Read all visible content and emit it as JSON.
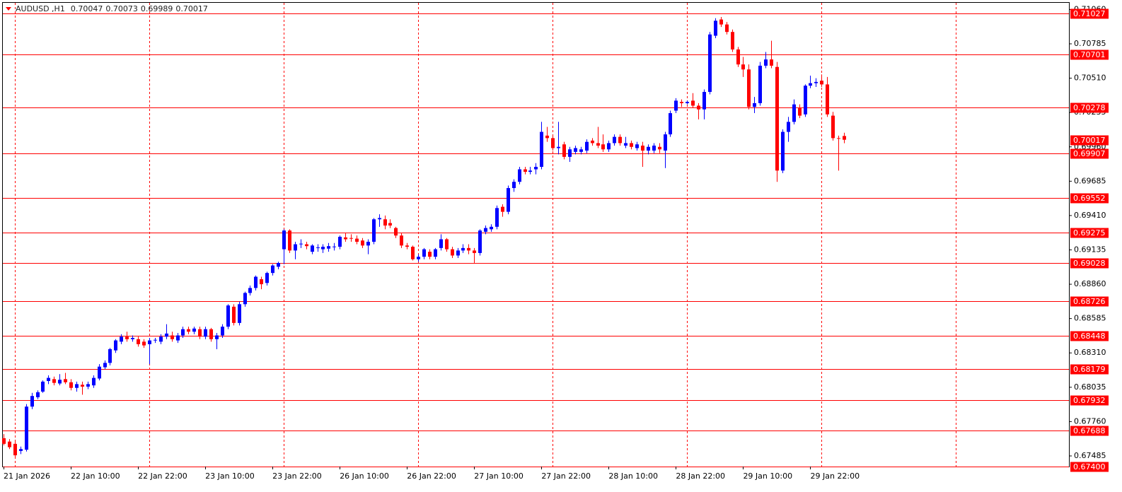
{
  "chart_data": {
    "type": "candlestick",
    "symbol": "AUDUSD ,H1",
    "bull_color": "#0000ff",
    "bear_color": "#ff0000",
    "level_color": "#ff0000",
    "grid": true,
    "ylim": [
      0.674,
      0.71136
    ],
    "yticks": [
      {
        "value": 0.7106,
        "label": "0.71060"
      },
      {
        "value": 0.70785,
        "label": "0.70785"
      },
      {
        "value": 0.7051,
        "label": "0.70510"
      },
      {
        "value": 0.70235,
        "label": "0.70235"
      },
      {
        "value": 0.6996,
        "label": "0.69960"
      },
      {
        "value": 0.69685,
        "label": "0.69685"
      },
      {
        "value": 0.6941,
        "label": "0.69410"
      },
      {
        "value": 0.69135,
        "label": "0.69135"
      },
      {
        "value": 0.6886,
        "label": "0.68860"
      },
      {
        "value": 0.68585,
        "label": "0.68585"
      },
      {
        "value": 0.6831,
        "label": "0.68310"
      },
      {
        "value": 0.68035,
        "label": "0.68035"
      },
      {
        "value": 0.6776,
        "label": "0.67760"
      },
      {
        "value": 0.67485,
        "label": "0.67485"
      }
    ],
    "levels": [
      {
        "value": 0.71027,
        "label": "0.71027"
      },
      {
        "value": 0.70701,
        "label": "0.70701"
      },
      {
        "value": 0.70278,
        "label": "0.70278"
      },
      {
        "value": 0.69907,
        "label": "0.69907"
      },
      {
        "value": 0.69552,
        "label": "0.69552"
      },
      {
        "value": 0.69275,
        "label": "0.69275"
      },
      {
        "value": 0.69028,
        "label": "0.69028"
      },
      {
        "value": 0.68726,
        "label": "0.68726"
      },
      {
        "value": 0.68448,
        "label": "0.68448"
      },
      {
        "value": 0.68179,
        "label": "0.68179"
      },
      {
        "value": 0.67932,
        "label": "0.67932"
      },
      {
        "value": 0.67688,
        "label": "0.67688"
      },
      {
        "value": 0.674,
        "label": "0.67400"
      }
    ],
    "categories": [
      "21 Jan 2026",
      null,
      null,
      null,
      null,
      null,
      null,
      null,
      null,
      null,
      null,
      null,
      "22 Jan 10:00",
      null,
      null,
      null,
      null,
      null,
      null,
      null,
      null,
      null,
      null,
      null,
      "22 Jan 22:00",
      null,
      null,
      null,
      null,
      null,
      null,
      null,
      null,
      null,
      null,
      null,
      "23 Jan 10:00",
      null,
      null,
      null,
      null,
      null,
      null,
      null,
      null,
      null,
      null,
      null,
      "23 Jan 22:00",
      null,
      null,
      null,
      null,
      null,
      null,
      null,
      null,
      null,
      null,
      null,
      "26 Jan 10:00",
      null,
      null,
      null,
      null,
      null,
      null,
      null,
      null,
      null,
      null,
      null,
      "26 Jan 22:00",
      null,
      null,
      null,
      null,
      null,
      null,
      null,
      null,
      null,
      null,
      null,
      "27 Jan 10:00",
      null,
      null,
      null,
      null,
      null,
      null,
      null,
      null,
      null,
      null,
      null,
      "27 Jan 22:00",
      null,
      null,
      null,
      null,
      null,
      null,
      null,
      null,
      null,
      null,
      null,
      "28 Jan 10:00",
      null,
      null,
      null,
      null,
      null,
      null,
      null,
      null,
      null,
      null,
      null,
      "28 Jan 22:00",
      null,
      null,
      null,
      null,
      null,
      null,
      null,
      null,
      null,
      null,
      null,
      "29 Jan 10:00",
      null,
      null,
      null,
      null,
      null,
      null,
      null,
      null,
      null,
      null,
      null,
      "29 Jan 22:00",
      null,
      null,
      null,
      null,
      null,
      null
    ],
    "open": [
      0.67627,
      0.676,
      0.67582,
      0.67525,
      0.67535,
      0.6788,
      0.67955,
      0.68,
      0.68085,
      0.681,
      0.68065,
      0.681,
      0.68075,
      0.6803,
      0.68055,
      0.6804,
      0.6805,
      0.68105,
      0.68195,
      0.6823,
      0.6833,
      0.684,
      0.6844,
      0.6842,
      0.6842,
      0.684,
      0.6838,
      0.6841,
      0.684,
      0.6844,
      0.6845,
      0.6841,
      0.6845,
      0.685,
      0.6848,
      0.685,
      0.6844,
      0.685,
      0.6842,
      0.6845,
      0.6852,
      0.6868,
      0.6855,
      0.687,
      0.6879,
      0.6883,
      0.689,
      0.6887,
      0.6895,
      0.69,
      0.6914,
      0.6929,
      0.6913,
      0.6918,
      0.6918,
      0.6912,
      0.6915,
      0.6914,
      0.69145,
      0.6916,
      0.6916,
      0.69235,
      0.6923,
      0.69225,
      0.6921,
      0.6917,
      0.692,
      0.6938,
      0.6938,
      0.6935,
      0.6931,
      0.6925,
      0.6917,
      0.6916,
      0.6906,
      0.6908,
      0.6912,
      0.6908,
      0.6915,
      0.6922,
      0.6914,
      0.6909,
      0.6913,
      0.6915,
      0.6913,
      0.6911,
      0.6928,
      0.693,
      0.6932,
      0.6948,
      0.6944,
      0.6963,
      0.6968,
      0.6978,
      0.6976,
      0.6978,
      0.698,
      0.7005,
      0.7003,
      0.6995,
      0.6998,
      0.6988,
      0.6992,
      0.6992,
      0.6993,
      0.7001,
      0.6999,
      0.6998,
      0.6994,
      0.6999,
      0.7004,
      0.6997,
      0.6999,
      0.6995,
      0.6997,
      0.6993,
      0.6993,
      0.6996,
      0.6993,
      0.7006,
      0.7025,
      0.7032,
      0.7031,
      0.7033,
      0.7029,
      0.7026,
      0.704,
      0.7085,
      0.7098,
      0.7094,
      0.7088,
      0.7074,
      0.7062,
      0.7058,
      0.7028,
      0.7031,
      0.7061,
      0.7066,
      0.706,
      0.6977,
      0.7008,
      0.7016,
      0.7027,
      0.7022,
      0.7045,
      0.7047,
      0.7049,
      0.7046,
      0.7021,
      0.7003,
      0.70047
    ],
    "high": [
      0.6766,
      0.6762,
      0.676,
      0.6756,
      0.679,
      0.6799,
      0.6801,
      0.6809,
      0.6813,
      0.6812,
      0.6814,
      0.6815,
      0.681,
      0.6808,
      0.6808,
      0.6808,
      0.6813,
      0.6822,
      0.6825,
      0.6835,
      0.6842,
      0.6846,
      0.6848,
      0.6845,
      0.6844,
      0.6842,
      0.6843,
      0.6843,
      0.6846,
      0.6854,
      0.6848,
      0.6847,
      0.6852,
      0.6852,
      0.6852,
      0.6852,
      0.6852,
      0.6851,
      0.6847,
      0.6854,
      0.687,
      0.687,
      0.6872,
      0.688,
      0.6885,
      0.6893,
      0.6892,
      0.6896,
      0.6902,
      0.6904,
      0.693,
      0.693,
      0.692,
      0.6922,
      0.692,
      0.6918,
      0.6918,
      0.6918,
      0.6919,
      0.6919,
      0.6925,
      0.6927,
      0.6926,
      0.6925,
      0.6923,
      0.6922,
      0.6939,
      0.6942,
      0.6941,
      0.6938,
      0.6932,
      0.6927,
      0.6919,
      0.6917,
      0.691,
      0.6915,
      0.6914,
      0.6915,
      0.6926,
      0.6923,
      0.6916,
      0.6915,
      0.6918,
      0.6918,
      0.6915,
      0.693,
      0.6933,
      0.6934,
      0.6949,
      0.695,
      0.6965,
      0.697,
      0.698,
      0.698,
      0.698,
      0.6983,
      0.7016,
      0.7012,
      0.7005,
      0.7016,
      0.7,
      0.6996,
      0.6997,
      0.6996,
      0.7002,
      0.7003,
      0.7012,
      0.7006,
      0.7001,
      0.7006,
      0.7006,
      0.7004,
      0.7001,
      0.7,
      0.7,
      0.6998,
      0.6999,
      0.6999,
      0.7008,
      0.7025,
      0.7035,
      0.7034,
      0.7033,
      0.7039,
      0.7031,
      0.7042,
      0.7088,
      0.7099,
      0.71,
      0.7096,
      0.709,
      0.7076,
      0.7068,
      0.7062,
      0.7036,
      0.7064,
      0.7072,
      0.7081,
      0.7064,
      0.701,
      0.702,
      0.7034,
      0.703,
      0.7046,
      0.7053,
      0.7051,
      0.7054,
      0.7052,
      0.7024,
      0.7005,
      0.70073
    ],
    "low": [
      0.6757,
      0.6754,
      0.67475,
      0.675,
      0.6752,
      0.6786,
      0.6794,
      0.6799,
      0.6806,
      0.6805,
      0.6805,
      0.6806,
      0.6801,
      0.68,
      0.67975,
      0.6802,
      0.6803,
      0.6809,
      0.6818,
      0.6821,
      0.6831,
      0.6838,
      0.684,
      0.684,
      0.6836,
      0.6835,
      0.6822,
      0.6839,
      0.6838,
      0.6842,
      0.684,
      0.6839,
      0.6843,
      0.6846,
      0.6846,
      0.6842,
      0.6842,
      0.684,
      0.6834,
      0.6843,
      0.685,
      0.6853,
      0.6853,
      0.6868,
      0.6877,
      0.6881,
      0.6882,
      0.6885,
      0.6893,
      0.6898,
      0.6902,
      0.6911,
      0.6906,
      0.6915,
      0.6914,
      0.691,
      0.6912,
      0.6911,
      0.6912,
      0.6913,
      0.6914,
      0.692,
      0.692,
      0.6918,
      0.6915,
      0.691,
      0.6918,
      0.6932,
      0.693,
      0.6931,
      0.6923,
      0.6915,
      0.6914,
      0.6905,
      0.6904,
      0.6906,
      0.6906,
      0.6906,
      0.6913,
      0.6912,
      0.6907,
      0.6907,
      0.6911,
      0.691,
      0.6903,
      0.6909,
      0.6926,
      0.6928,
      0.693,
      0.694,
      0.6942,
      0.696,
      0.6966,
      0.6974,
      0.6974,
      0.6974,
      0.6978,
      0.7,
      0.6993,
      0.699,
      0.6986,
      0.6984,
      0.699,
      0.699,
      0.6991,
      0.6997,
      0.6995,
      0.6992,
      0.6992,
      0.6997,
      0.6997,
      0.6995,
      0.6994,
      0.6993,
      0.698,
      0.699,
      0.6991,
      0.6991,
      0.6979,
      0.7004,
      0.7023,
      0.7028,
      0.703,
      0.7027,
      0.7018,
      0.7018,
      0.7038,
      0.7083,
      0.7092,
      0.7086,
      0.7072,
      0.706,
      0.7052,
      0.7026,
      0.7023,
      0.7029,
      0.7059,
      0.7059,
      0.6968,
      0.6975,
      0.7,
      0.7014,
      0.7019,
      0.702,
      0.7043,
      0.7044,
      0.7044,
      0.702,
      0.7001,
      0.6977,
      0.69989
    ],
    "close": [
      0.67582,
      0.67555,
      0.6749,
      0.6754,
      0.6788,
      0.67965,
      0.67995,
      0.6808,
      0.6811,
      0.6807,
      0.68095,
      0.68075,
      0.6803,
      0.6806,
      0.6804,
      0.6806,
      0.6811,
      0.682,
      0.6823,
      0.6834,
      0.6841,
      0.6844,
      0.6842,
      0.6843,
      0.6838,
      0.6837,
      0.6841,
      0.68415,
      0.6844,
      0.68465,
      0.6842,
      0.6845,
      0.685,
      0.6848,
      0.68505,
      0.6844,
      0.685,
      0.6842,
      0.6845,
      0.6852,
      0.6869,
      0.6855,
      0.687,
      0.6879,
      0.6883,
      0.6892,
      0.6886,
      0.6895,
      0.6901,
      0.6903,
      0.6929,
      0.6913,
      0.6918,
      0.69185,
      0.69165,
      0.6917,
      0.69155,
      0.6916,
      0.69165,
      0.69162,
      0.6924,
      0.6922,
      0.69225,
      0.692,
      0.6917,
      0.692,
      0.6938,
      0.6939,
      0.6933,
      0.6933,
      0.6925,
      0.6917,
      0.6916,
      0.6906,
      0.6908,
      0.6914,
      0.6908,
      0.6914,
      0.6922,
      0.6914,
      0.6909,
      0.6913,
      0.6915,
      0.6913,
      0.6911,
      0.6929,
      0.6931,
      0.6932,
      0.6947,
      0.6944,
      0.6963,
      0.6968,
      0.6978,
      0.6976,
      0.6977,
      0.698,
      0.7008,
      0.7003,
      0.6995,
      0.6996,
      0.6988,
      0.6994,
      0.6995,
      0.6994,
      0.7,
      0.6999,
      0.6997,
      0.6994,
      0.6999,
      0.7004,
      0.6999,
      0.6999,
      0.6996,
      0.6998,
      0.6993,
      0.6996,
      0.6997,
      0.6994,
      0.7006,
      0.7023,
      0.7033,
      0.7031,
      0.7032,
      0.7029,
      0.7026,
      0.704,
      0.7086,
      0.7097,
      0.7094,
      0.7088,
      0.7074,
      0.7062,
      0.7058,
      0.7028,
      0.7031,
      0.7061,
      0.7066,
      0.7061,
      0.6977,
      0.7008,
      0.7016,
      0.703,
      0.7021,
      0.7045,
      0.7047,
      0.7048,
      0.7046,
      0.7022,
      0.7003,
      0.70025,
      0.70017
    ]
  }
}
